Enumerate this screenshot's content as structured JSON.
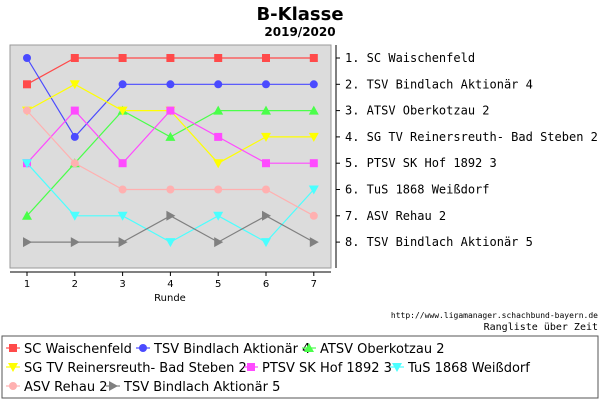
{
  "chart_data": {
    "type": "line",
    "title": "B-Klasse",
    "subtitle": "2019/2020",
    "xlabel": "Runde",
    "ylabel": "",
    "x": [
      1,
      2,
      3,
      4,
      5,
      6,
      7
    ],
    "ylim": [
      1,
      8
    ],
    "y_inverted": true,
    "grid": false,
    "legend_position": "bottom",
    "rank_labels": [
      "1. SC Waischenfeld",
      "2. TSV Bindlach Aktionär 4",
      "3. ATSV Oberkotzau 2",
      "4. SG TV Reinersreuth- Bad Steben 2",
      "5. PTSV SK Hof 1892 3",
      "6. TuS 1868 Weißdorf",
      "7. ASV Rehau 2",
      "8. TSV Bindlach Aktionär 5"
    ],
    "series": [
      {
        "name": "SC Waischenfeld",
        "color": "#ff4a4a",
        "marker": "square",
        "values": [
          2,
          1,
          1,
          1,
          1,
          1,
          1
        ]
      },
      {
        "name": "TSV Bindlach Aktionär 4",
        "color": "#4a4aff",
        "marker": "circle",
        "values": [
          1,
          4,
          2,
          2,
          2,
          2,
          2
        ]
      },
      {
        "name": "ATSV Oberkotzau 2",
        "color": "#4aff4a",
        "marker": "triangle-up",
        "values": [
          7,
          5,
          3,
          4,
          3,
          3,
          3
        ]
      },
      {
        "name": "SG TV Reinersreuth- Bad Steben 2",
        "color": "#ffff00",
        "marker": "triangle-down",
        "values": [
          3,
          2,
          3,
          3,
          5,
          4,
          4
        ]
      },
      {
        "name": "PTSV SK Hof 1892 3",
        "color": "#ff4aff",
        "marker": "square",
        "values": [
          5,
          3,
          5,
          3,
          4,
          5,
          5
        ]
      },
      {
        "name": "TuS 1868 Weißdorf",
        "color": "#4affff",
        "marker": "triangle-down",
        "values": [
          5,
          7,
          7,
          8,
          7,
          8,
          6
        ]
      },
      {
        "name": "ASV Rehau 2",
        "color": "#ffb0b0",
        "marker": "circle",
        "values": [
          3,
          5,
          6,
          6,
          6,
          6,
          7
        ]
      },
      {
        "name": "TSV Bindlach Aktionär 5",
        "color": "#808080",
        "marker": "triangle-right",
        "values": [
          8,
          8,
          8,
          7,
          8,
          7,
          8
        ]
      }
    ]
  },
  "footer": {
    "url": "http://www.ligamanager.schachbund-bayern.de",
    "caption": "Rangliste über Zeit"
  }
}
